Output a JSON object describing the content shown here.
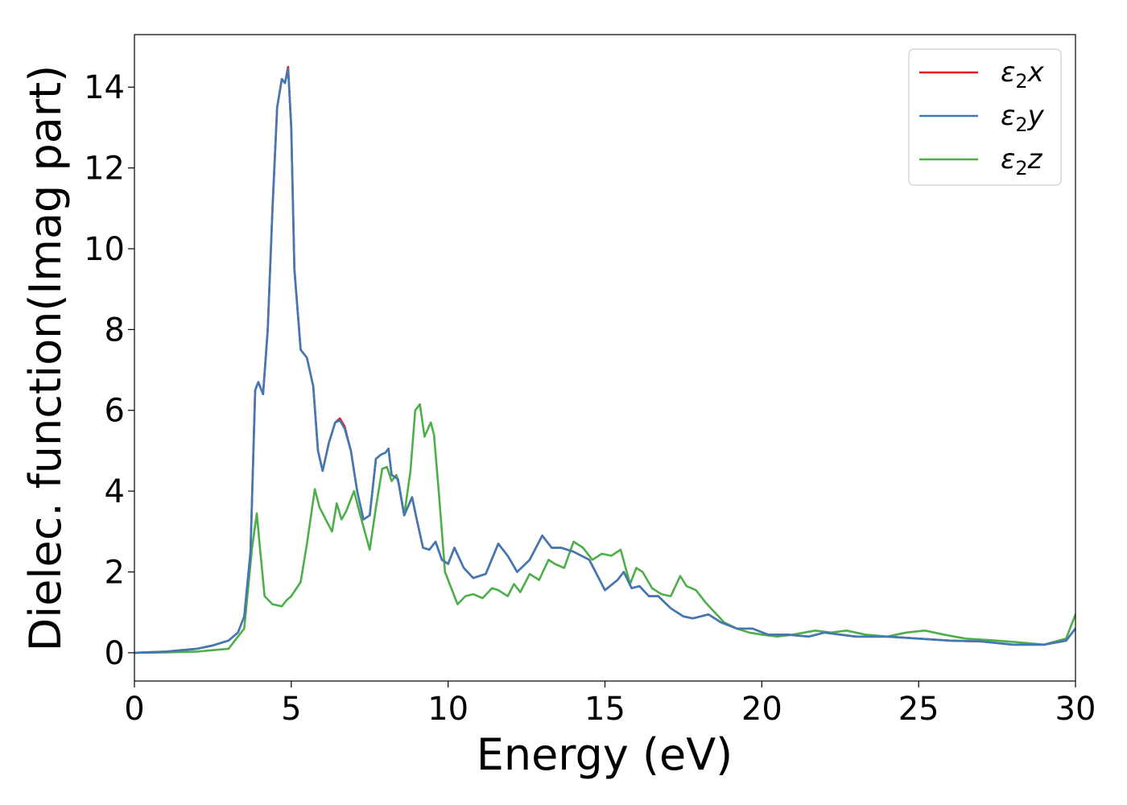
{
  "chart_data": {
    "type": "line",
    "title": "",
    "xlabel": "Energy (eV)",
    "ylabel": "Dielec. function(Imag part)",
    "xlim": [
      0,
      30
    ],
    "ylim": [
      -0.7,
      15.3
    ],
    "xticks": [
      0,
      5,
      10,
      15,
      20,
      25,
      30
    ],
    "yticks": [
      0,
      2,
      4,
      6,
      8,
      10,
      12,
      14
    ],
    "xtick_labels": [
      "0",
      "5",
      "10",
      "15",
      "20",
      "25",
      "30"
    ],
    "ytick_labels": [
      "0",
      "2",
      "4",
      "6",
      "8",
      "10",
      "12",
      "14"
    ],
    "grid": false,
    "legend": "top-right",
    "series": [
      {
        "name": "ε₂x",
        "legend_base": "ε",
        "legend_sub": "2",
        "legend_tail": "x",
        "color": "#e41a1c",
        "x": [
          0,
          1,
          2,
          2.5,
          3,
          3.3,
          3.5,
          3.7,
          3.85,
          3.95,
          4.1,
          4.25,
          4.4,
          4.55,
          4.7,
          4.8,
          4.9,
          5.0,
          5.1,
          5.3,
          5.5,
          5.7,
          5.85,
          6.0,
          6.2,
          6.4,
          6.55,
          6.7,
          6.9,
          7.1,
          7.3,
          7.5,
          7.7,
          7.85,
          8.0,
          8.1,
          8.2,
          8.4,
          8.6,
          8.85,
          9.0,
          9.2,
          9.4,
          9.6,
          9.8,
          10.0,
          10.2,
          10.5,
          10.8,
          11.2,
          11.6,
          11.9,
          12.2,
          12.6,
          13.0,
          13.3,
          13.6,
          14.0,
          14.5,
          15.0,
          15.4,
          15.6,
          15.85,
          16.1,
          16.4,
          16.7,
          17.1,
          17.5,
          17.8,
          18.3,
          18.7,
          19.2,
          19.7,
          20.2,
          20.8,
          21.5,
          22.0,
          23.0,
          24.0,
          25.0,
          26.0,
          27.0,
          28.0,
          29.0,
          29.7,
          30.0
        ],
        "values": [
          0,
          0.03,
          0.1,
          0.18,
          0.3,
          0.5,
          0.9,
          2.5,
          6.5,
          6.7,
          6.4,
          8.0,
          11.0,
          13.5,
          14.2,
          14.1,
          14.5,
          13.0,
          9.5,
          7.5,
          7.3,
          6.6,
          5.0,
          4.5,
          5.2,
          5.7,
          5.8,
          5.6,
          5.0,
          4.0,
          3.3,
          3.4,
          4.8,
          4.9,
          4.95,
          5.05,
          4.4,
          4.3,
          3.4,
          3.85,
          3.3,
          2.6,
          2.55,
          2.75,
          2.3,
          2.2,
          2.6,
          2.1,
          1.85,
          1.95,
          2.7,
          2.4,
          2.0,
          2.3,
          2.9,
          2.6,
          2.6,
          2.5,
          2.3,
          1.55,
          1.8,
          2.0,
          1.6,
          1.65,
          1.4,
          1.4,
          1.1,
          0.9,
          0.85,
          0.95,
          0.75,
          0.6,
          0.6,
          0.45,
          0.45,
          0.4,
          0.5,
          0.4,
          0.4,
          0.35,
          0.3,
          0.28,
          0.2,
          0.2,
          0.3,
          0.6
        ]
      },
      {
        "name": "ε₂y",
        "legend_base": "ε",
        "legend_sub": "2",
        "legend_tail": "y",
        "color": "#3e7bb6",
        "x": [
          0,
          1,
          2,
          2.5,
          3,
          3.3,
          3.5,
          3.7,
          3.85,
          3.95,
          4.1,
          4.25,
          4.4,
          4.55,
          4.7,
          4.8,
          4.9,
          5.0,
          5.1,
          5.3,
          5.5,
          5.7,
          5.85,
          6.0,
          6.2,
          6.4,
          6.55,
          6.7,
          6.9,
          7.1,
          7.3,
          7.5,
          7.7,
          7.85,
          8.0,
          8.1,
          8.2,
          8.4,
          8.6,
          8.85,
          9.0,
          9.2,
          9.4,
          9.6,
          9.8,
          10.0,
          10.2,
          10.5,
          10.8,
          11.2,
          11.6,
          11.9,
          12.2,
          12.6,
          13.0,
          13.3,
          13.6,
          14.0,
          14.5,
          15.0,
          15.4,
          15.6,
          15.85,
          16.1,
          16.4,
          16.7,
          17.1,
          17.5,
          17.8,
          18.3,
          18.7,
          19.2,
          19.7,
          20.2,
          20.8,
          21.5,
          22.0,
          23.0,
          24.0,
          25.0,
          26.0,
          27.0,
          28.0,
          29.0,
          29.7,
          30.0
        ],
        "values": [
          0,
          0.03,
          0.1,
          0.18,
          0.3,
          0.5,
          0.9,
          2.5,
          6.5,
          6.7,
          6.4,
          8.0,
          11.0,
          13.5,
          14.2,
          14.1,
          14.45,
          13.0,
          9.5,
          7.5,
          7.3,
          6.6,
          5.0,
          4.5,
          5.2,
          5.7,
          5.75,
          5.55,
          5.0,
          4.0,
          3.3,
          3.4,
          4.8,
          4.9,
          4.95,
          5.05,
          4.4,
          4.3,
          3.4,
          3.85,
          3.3,
          2.6,
          2.55,
          2.75,
          2.3,
          2.2,
          2.6,
          2.1,
          1.85,
          1.95,
          2.7,
          2.4,
          2.0,
          2.3,
          2.9,
          2.6,
          2.6,
          2.5,
          2.3,
          1.55,
          1.8,
          2.0,
          1.6,
          1.65,
          1.4,
          1.4,
          1.1,
          0.9,
          0.85,
          0.95,
          0.75,
          0.6,
          0.6,
          0.45,
          0.45,
          0.4,
          0.5,
          0.4,
          0.4,
          0.35,
          0.3,
          0.28,
          0.2,
          0.2,
          0.3,
          0.6
        ]
      },
      {
        "name": "ε₂z",
        "legend_base": "ε",
        "legend_sub": "2",
        "legend_tail": "z",
        "color": "#4daf4a",
        "x": [
          0,
          1,
          2,
          3,
          3.5,
          3.75,
          3.9,
          4.0,
          4.15,
          4.4,
          4.7,
          4.85,
          5.0,
          5.3,
          5.5,
          5.75,
          5.9,
          6.1,
          6.3,
          6.45,
          6.6,
          6.75,
          7.0,
          7.2,
          7.5,
          7.7,
          7.9,
          8.05,
          8.2,
          8.35,
          8.45,
          8.6,
          8.8,
          8.95,
          9.1,
          9.25,
          9.45,
          9.55,
          9.7,
          9.9,
          10.1,
          10.3,
          10.55,
          10.8,
          11.1,
          11.4,
          11.6,
          11.9,
          12.1,
          12.3,
          12.6,
          12.9,
          13.2,
          13.4,
          13.7,
          14.0,
          14.3,
          14.6,
          14.9,
          15.2,
          15.5,
          15.8,
          16.0,
          16.2,
          16.5,
          16.8,
          17.1,
          17.4,
          17.6,
          17.9,
          18.2,
          18.5,
          18.8,
          19.2,
          19.6,
          20.0,
          20.5,
          21.0,
          21.7,
          22.2,
          22.7,
          23.3,
          24.0,
          24.6,
          25.2,
          25.8,
          26.5,
          27.5,
          28.3,
          29.0,
          29.7,
          30.0
        ],
        "values": [
          0,
          0.01,
          0.03,
          0.1,
          0.6,
          2.6,
          3.45,
          2.6,
          1.4,
          1.2,
          1.15,
          1.3,
          1.4,
          1.75,
          2.7,
          4.05,
          3.6,
          3.3,
          3.0,
          3.7,
          3.3,
          3.5,
          4.0,
          3.4,
          2.55,
          3.6,
          4.55,
          4.6,
          4.25,
          4.4,
          4.1,
          3.4,
          4.5,
          6.0,
          6.15,
          5.35,
          5.7,
          5.4,
          4.0,
          2.0,
          1.6,
          1.2,
          1.4,
          1.45,
          1.35,
          1.6,
          1.55,
          1.4,
          1.7,
          1.5,
          1.95,
          1.8,
          2.3,
          2.2,
          2.1,
          2.75,
          2.6,
          2.3,
          2.45,
          2.4,
          2.55,
          1.7,
          2.1,
          2.0,
          1.6,
          1.45,
          1.4,
          1.9,
          1.65,
          1.55,
          1.25,
          1.0,
          0.75,
          0.6,
          0.5,
          0.45,
          0.4,
          0.45,
          0.55,
          0.5,
          0.55,
          0.45,
          0.4,
          0.5,
          0.55,
          0.45,
          0.35,
          0.3,
          0.25,
          0.2,
          0.35,
          0.95
        ]
      }
    ]
  }
}
